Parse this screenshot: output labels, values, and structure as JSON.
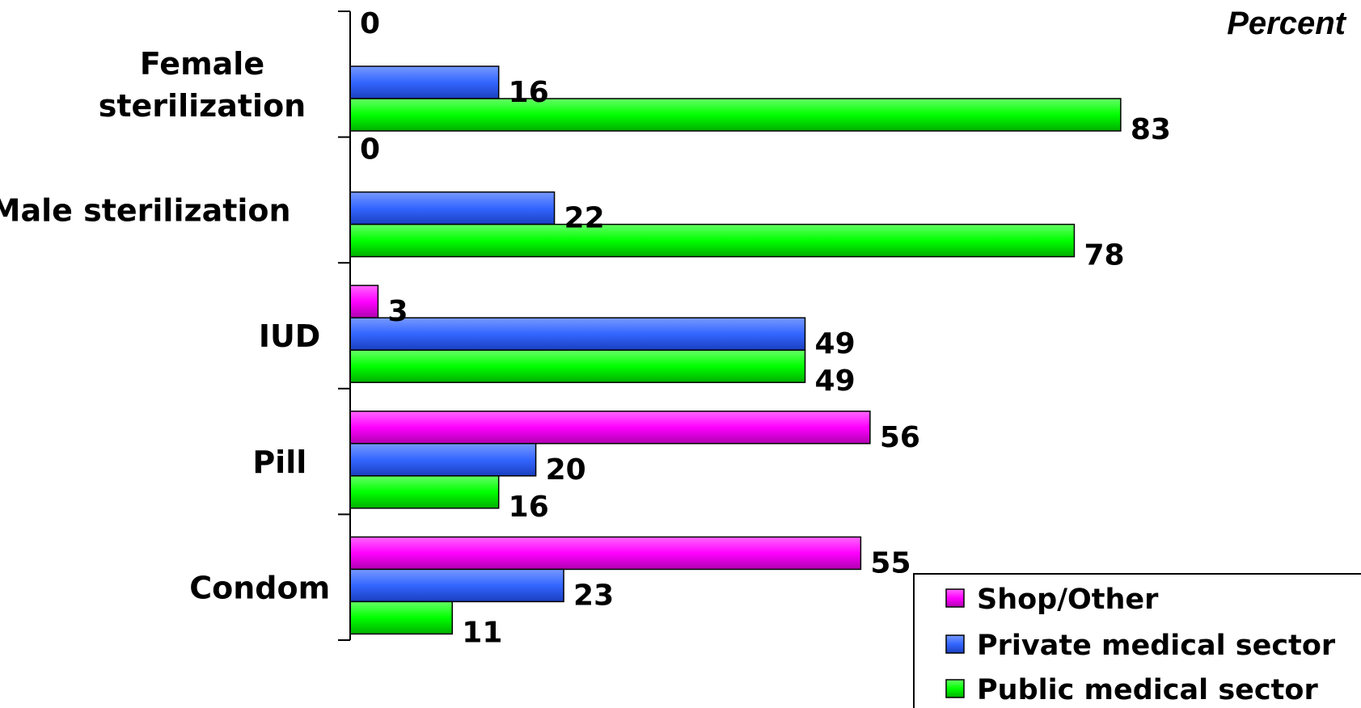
{
  "chart_data": {
    "type": "bar",
    "orientation": "horizontal",
    "unit_label": "Percent",
    "categories": [
      "Female sterilization",
      "Male sterilization",
      "IUD",
      "Pill",
      "Condom"
    ],
    "category_lines": [
      [
        "Female",
        "sterilization"
      ],
      [
        "Male sterilization"
      ],
      [
        "IUD"
      ],
      [
        "Pill"
      ],
      [
        "Condom"
      ]
    ],
    "series": [
      {
        "name": "Shop/Other",
        "color": "#ff00ff",
        "values": [
          0,
          0,
          3,
          56,
          55
        ]
      },
      {
        "name": "Private medical sector",
        "color": "#3366ff",
        "values": [
          16,
          22,
          49,
          20,
          23
        ]
      },
      {
        "name": "Public medical sector",
        "color": "#00ff00",
        "values": [
          83,
          78,
          49,
          16,
          11
        ]
      }
    ],
    "xlim": [
      0,
      100
    ],
    "grid": false,
    "legend_position": "bottom-right"
  }
}
